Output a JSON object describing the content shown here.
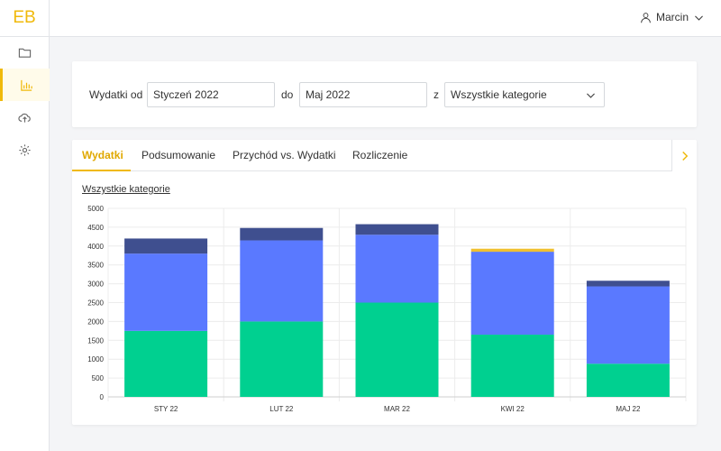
{
  "app": {
    "logo": "EB"
  },
  "sidebar": {
    "items": [
      {
        "icon": "folder-icon",
        "active": false
      },
      {
        "icon": "bar-chart-icon",
        "active": true
      },
      {
        "icon": "cloud-upload-icon",
        "active": false
      },
      {
        "icon": "gear-icon",
        "active": false
      }
    ]
  },
  "header": {
    "user_name": "Marcin"
  },
  "filters": {
    "from_label": "Wydatki od",
    "from_value": "Styczeń 2022",
    "to_label": "do",
    "to_value": "Maj 2022",
    "category_label": "z",
    "category_value": "Wszystkie kategorie"
  },
  "tabs": [
    {
      "label": "Wydatki",
      "active": true
    },
    {
      "label": "Podsumowanie",
      "active": false
    },
    {
      "label": "Przychód vs. Wydatki",
      "active": false
    },
    {
      "label": "Rozliczenie",
      "active": false
    }
  ],
  "chart_title": "Wszystkie kategorie",
  "colors": {
    "accent": "#f0b90b",
    "green": "#00d090",
    "blue": "#5a79ff",
    "navy": "#3f4f8f",
    "yellow": "#f0c030"
  },
  "chart_data": {
    "type": "bar",
    "stacked": true,
    "categories": [
      "STY 22",
      "LUT 22",
      "MAR 22",
      "KWI 22",
      "MAJ 22"
    ],
    "series": [
      {
        "values": [
          1750,
          2000,
          2500,
          1650,
          880
        ],
        "color": "#00d090"
      },
      {
        "values": [
          2050,
          2150,
          1800,
          2200,
          2050
        ],
        "color": "#5a79ff"
      },
      {
        "values": [
          400,
          330,
          280,
          0,
          150
        ],
        "color": "#3f4f8f"
      },
      {
        "values": [
          0,
          0,
          0,
          80,
          0
        ],
        "color": "#f0c030"
      }
    ],
    "ylim": [
      0,
      5000
    ],
    "yticks": [
      "0",
      "500",
      "1000",
      "1500",
      "2000",
      "2500",
      "3000",
      "3500",
      "4000",
      "4500",
      "5000"
    ],
    "grid": true
  }
}
